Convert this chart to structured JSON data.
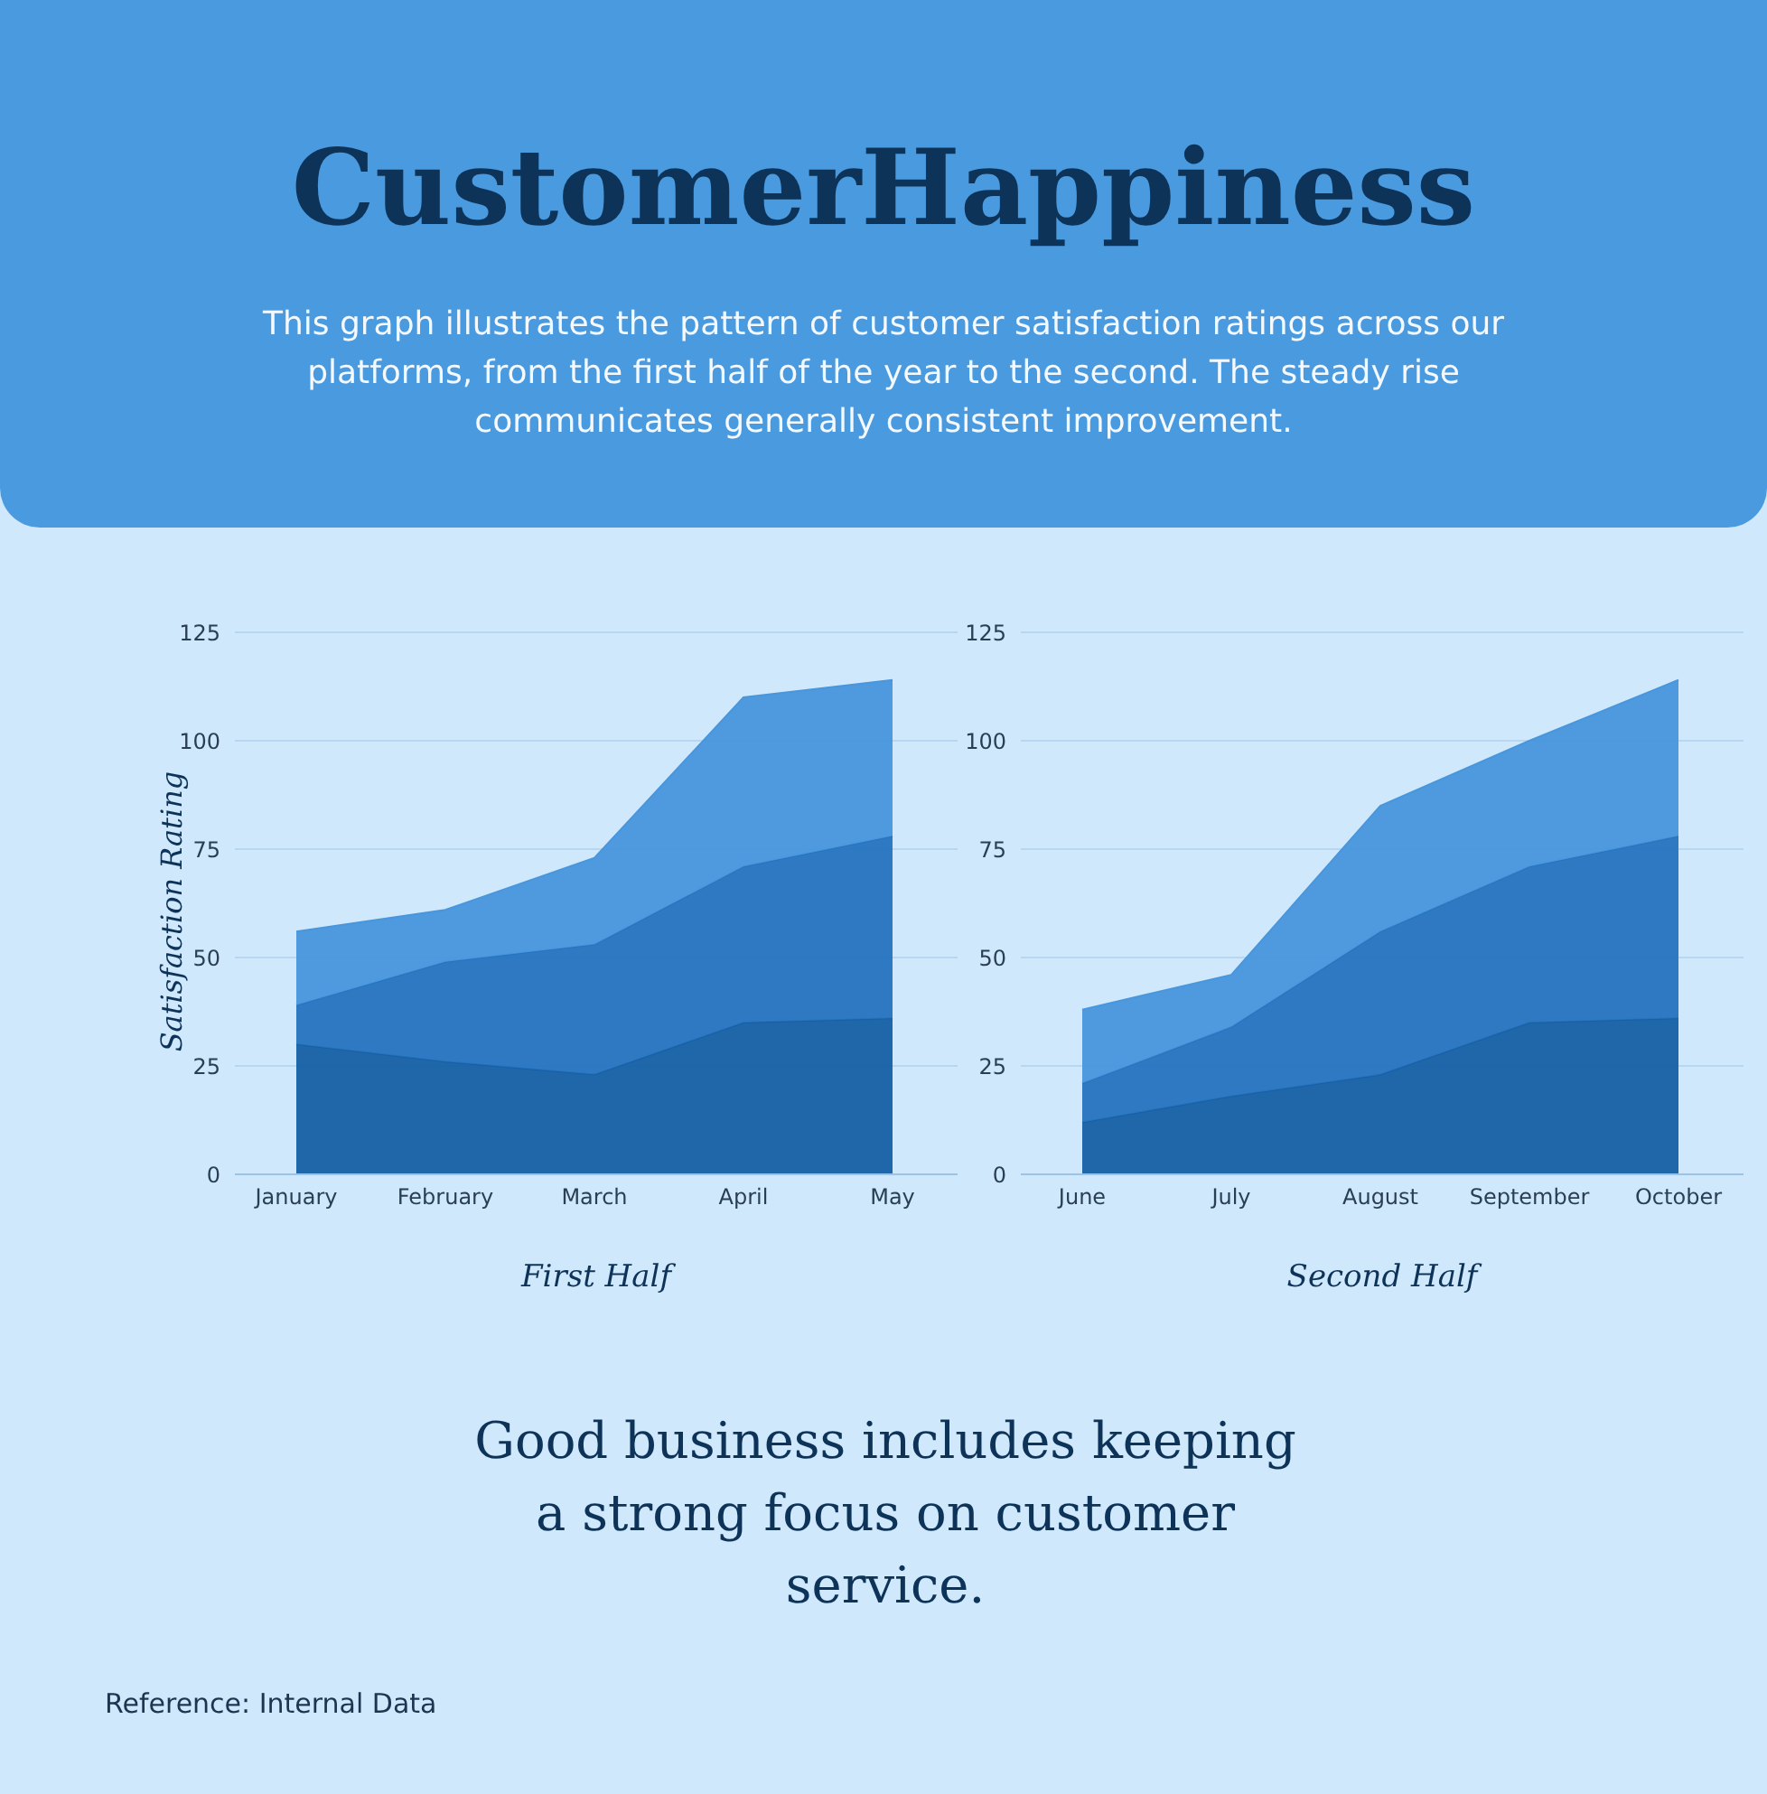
{
  "chart_data": [
    {
      "type": "area",
      "title": "CustomerHappiness",
      "subtitle": "This graph illustrates the pattern of customer satisfaction ratings across our platforms, from the first half of the year to the second. The steady rise communicates generally consistent improvement.",
      "xlabel": "First Half",
      "ylabel": "Satisfaction Rating",
      "annotations": [
        "Good business includes keeping a strong focus on customer service.",
        "Reference: Internal Data"
      ],
      "categories": [
        "January",
        "February",
        "March",
        "April",
        "May"
      ],
      "stacked": true,
      "ylim": [
        0,
        125
      ],
      "yticks": [
        0,
        25,
        50,
        75,
        100,
        125
      ],
      "grid": "y",
      "series": [
        {
          "color": "#1660a5",
          "values": [
            30,
            26,
            23,
            35,
            36
          ]
        },
        {
          "color": "#2673bf",
          "values": [
            9,
            23,
            30,
            36,
            42
          ]
        },
        {
          "color": "#4896dc",
          "values": [
            17,
            12,
            20,
            39,
            36
          ]
        }
      ]
    },
    {
      "type": "area",
      "xlabel": "Second Half",
      "categories": [
        "June",
        "July",
        "August",
        "September",
        "October"
      ],
      "stacked": true,
      "ylim": [
        0,
        125
      ],
      "yticks": [
        0,
        25,
        50,
        75,
        100,
        125
      ],
      "grid": "y",
      "series": [
        {
          "color": "#1660a5",
          "values": [
            12,
            18,
            23,
            35,
            36
          ]
        },
        {
          "color": "#2673bf",
          "values": [
            9,
            16,
            33,
            36,
            42
          ]
        },
        {
          "color": "#4896dc",
          "values": [
            17,
            12,
            29,
            29,
            36
          ]
        }
      ]
    }
  ]
}
